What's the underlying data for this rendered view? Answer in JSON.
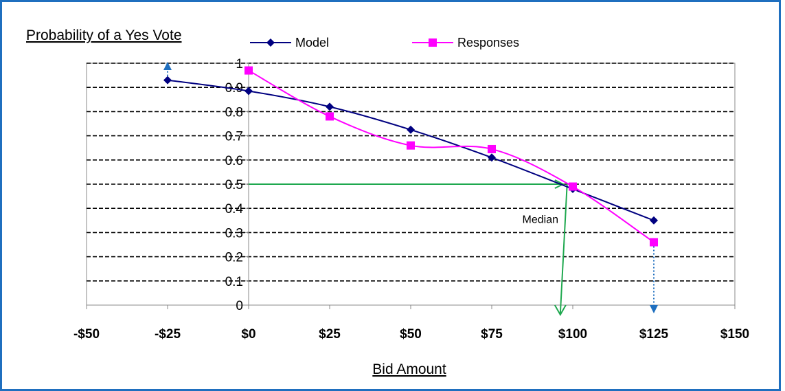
{
  "chart_data": {
    "type": "line",
    "title": "Probability of a Yes Vote",
    "xlabel": "Bid Amount",
    "ylabel": "",
    "xlim": [
      -50,
      150
    ],
    "ylim": [
      0,
      1
    ],
    "x_tick_labels": [
      "-$50",
      "-$25",
      "$0",
      "$25",
      "$50",
      "$75",
      "$100",
      "$125",
      "$150"
    ],
    "y_tick_labels": [
      "0",
      "0.1",
      "0.2",
      "0.3",
      "0.4",
      "0.5",
      "0.6",
      "0.7",
      "0.8",
      "0.9",
      "1"
    ],
    "grid": "horizontal dashed",
    "legend_position": "top",
    "series": [
      {
        "name": "Model",
        "color": "#000080",
        "marker": "diamond",
        "x": [
          -25,
          0,
          25,
          50,
          75,
          100,
          125
        ],
        "y": [
          0.93,
          0.885,
          0.82,
          0.725,
          0.61,
          0.48,
          0.35
        ]
      },
      {
        "name": "Responses",
        "color": "#ff00ff",
        "marker": "square",
        "x": [
          0,
          25,
          50,
          75,
          100,
          125
        ],
        "y": [
          0.97,
          0.78,
          0.66,
          0.645,
          0.49,
          0.26
        ]
      }
    ],
    "annotations": [
      {
        "text": "Median",
        "color": "#1fa84f",
        "from_y": 0.5,
        "to_x": 97,
        "description_text": "Median"
      }
    ]
  }
}
